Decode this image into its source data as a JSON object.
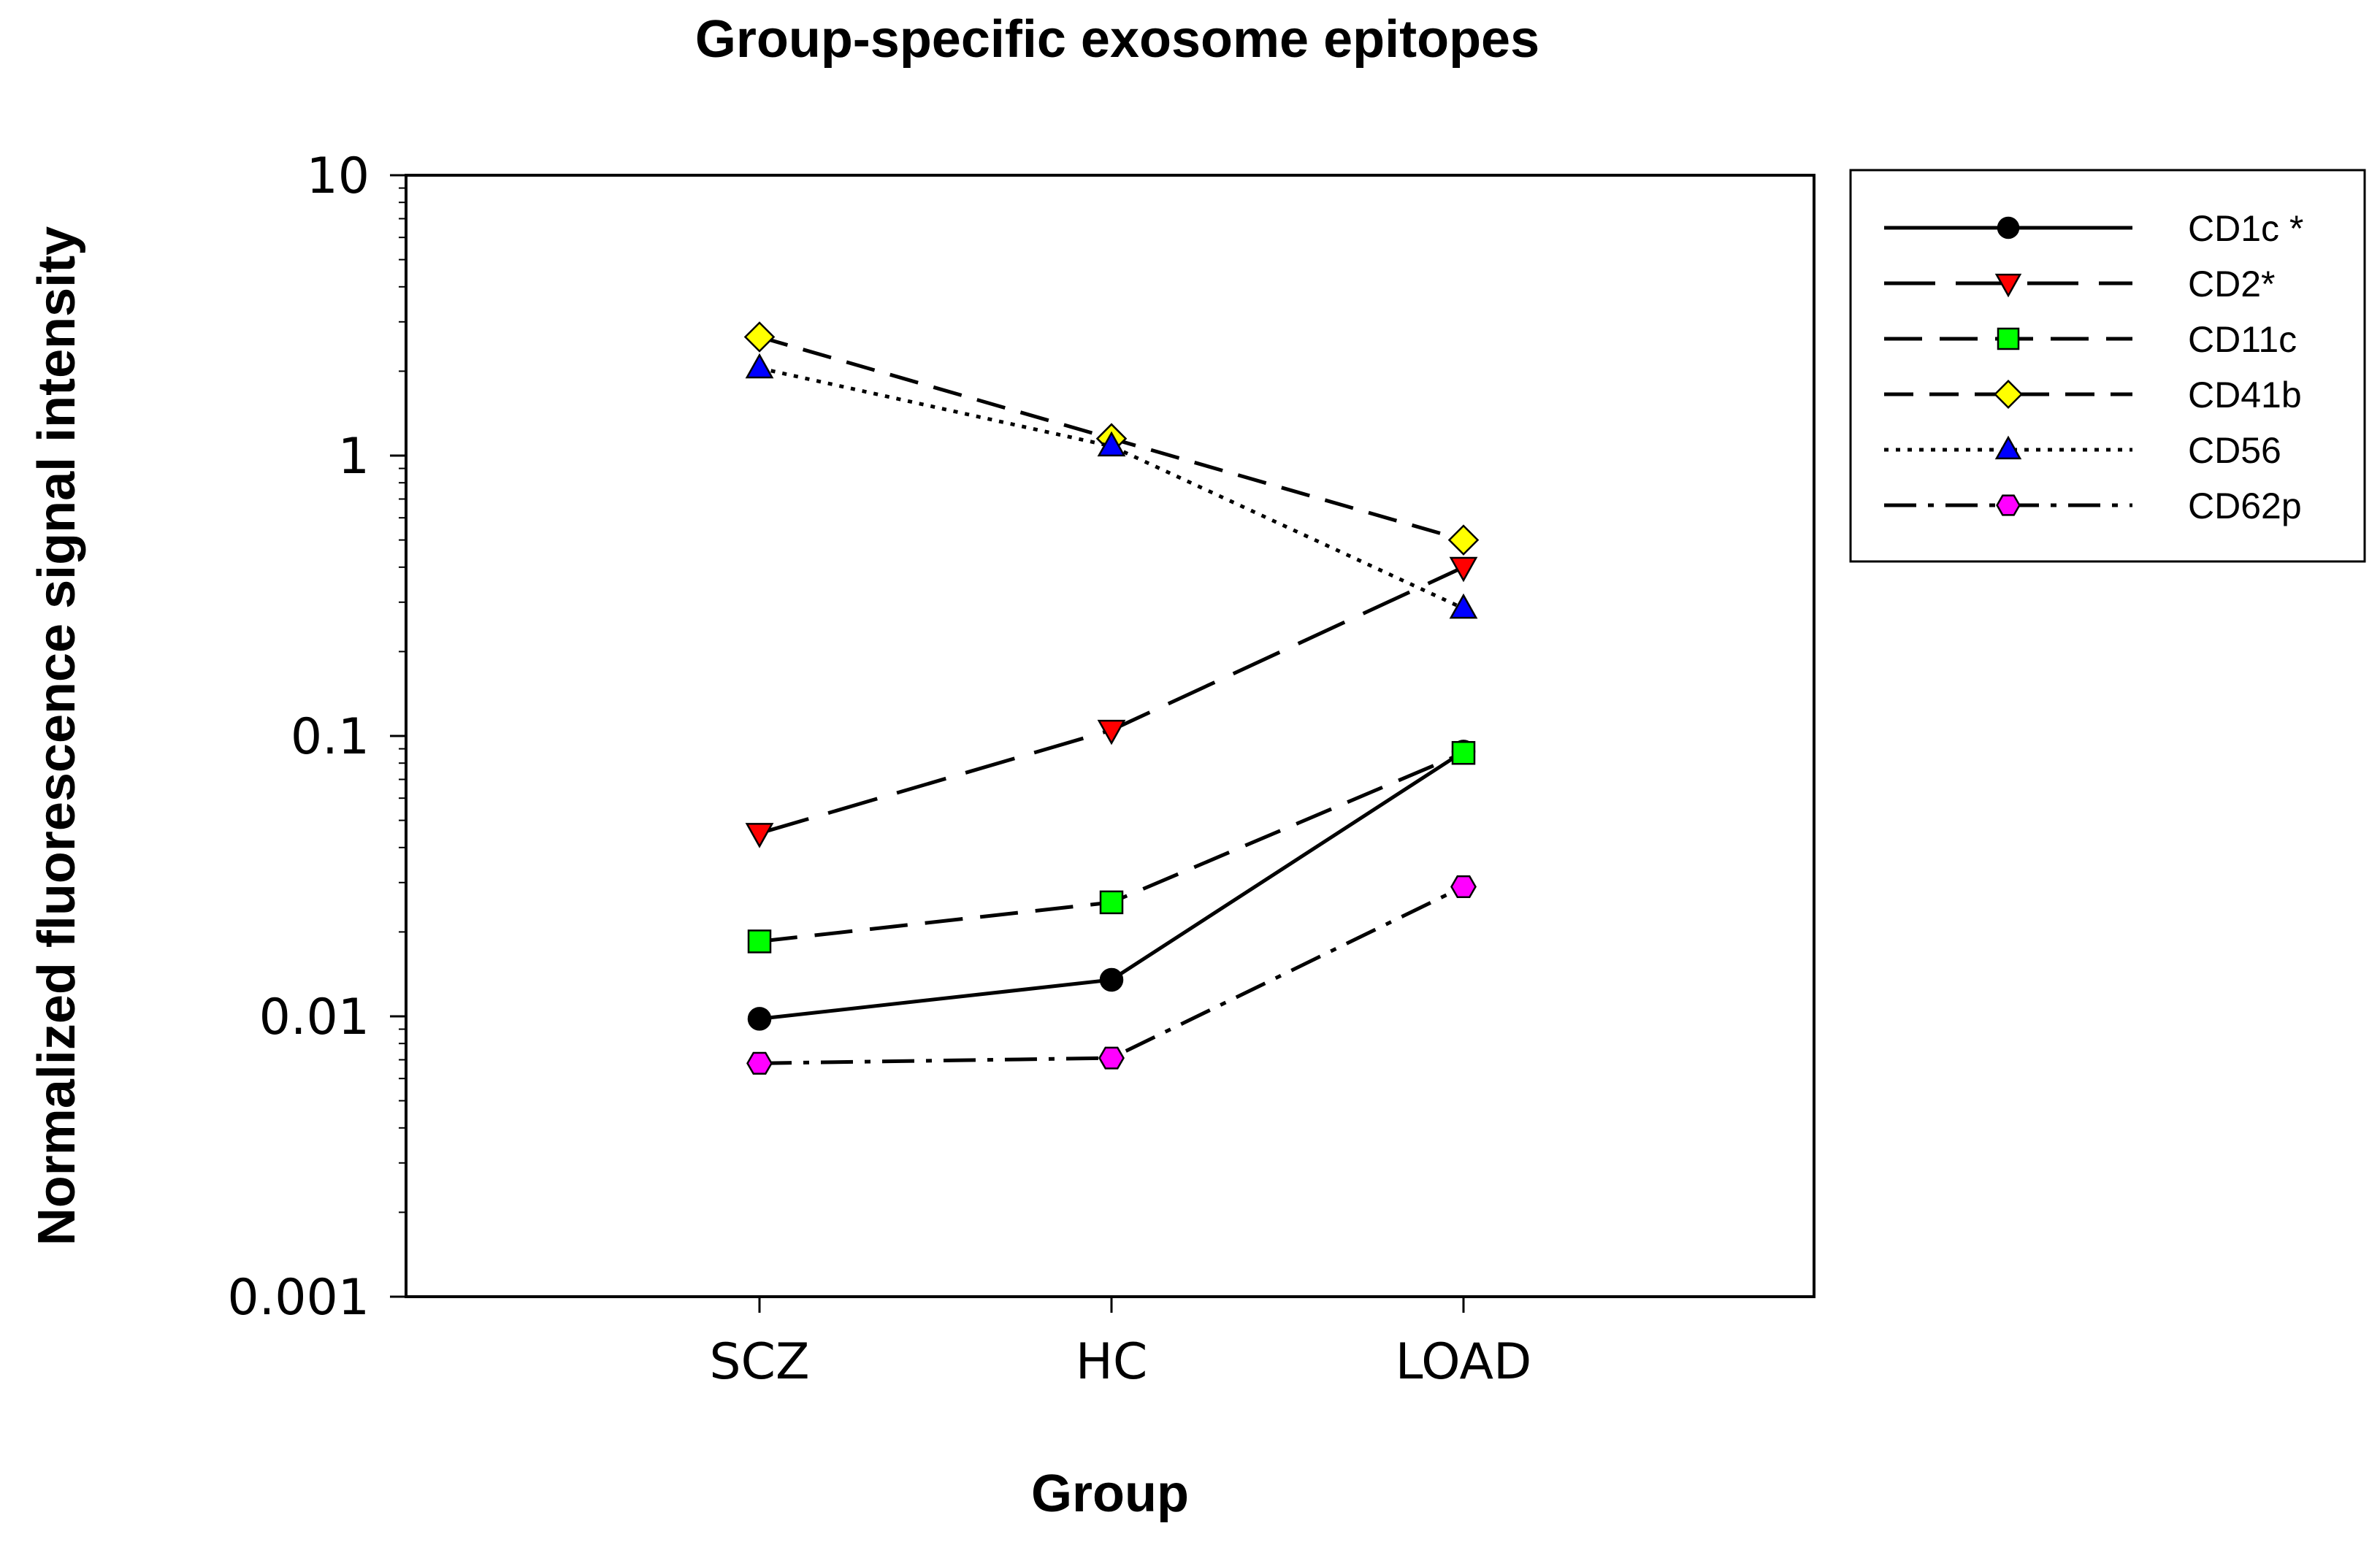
{
  "chart_data": {
    "type": "line",
    "title": "Group-specific exosome epitopes",
    "xlabel": "Group",
    "ylabel": "Normalized fluorescence signal intensity",
    "categories": [
      "SCZ",
      "HC",
      "LOAD"
    ],
    "yscale": "log",
    "ylim": [
      0.001,
      10
    ],
    "yticks": [
      {
        "value": 10,
        "label": "10"
      },
      {
        "value": 1,
        "label": "1"
      },
      {
        "value": 0.1,
        "label": "0.1"
      },
      {
        "value": 0.01,
        "label": "0.01"
      },
      {
        "value": 0.001,
        "label": "0.001"
      }
    ],
    "grid": false,
    "legend_position": "top-right, outside plot",
    "series": [
      {
        "name": "CD1c *",
        "values": [
          0.0098,
          0.0135,
          0.088
        ],
        "color": "#000000",
        "marker": "circle",
        "line_style": "solid"
      },
      {
        "name": "CD2*",
        "values": [
          0.045,
          0.105,
          0.4
        ],
        "color": "#ff0000",
        "marker": "triangle-down",
        "line_style": "long-dash"
      },
      {
        "name": "CD11c",
        "values": [
          0.0185,
          0.0255,
          0.087
        ],
        "color": "#00ff00",
        "marker": "square",
        "line_style": "medium-dash"
      },
      {
        "name": "CD41b",
        "values": [
          2.65,
          1.15,
          0.5
        ],
        "color": "#ffff00",
        "marker": "diamond",
        "line_style": "dash"
      },
      {
        "name": "CD56",
        "values": [
          2.05,
          1.08,
          0.285
        ],
        "color": "#0000ff",
        "marker": "triangle-up",
        "line_style": "dotted"
      },
      {
        "name": "CD62p",
        "values": [
          0.0068,
          0.0071,
          0.029
        ],
        "color": "#ff00ff",
        "marker": "hexagon",
        "line_style": "dash-dot"
      }
    ]
  }
}
